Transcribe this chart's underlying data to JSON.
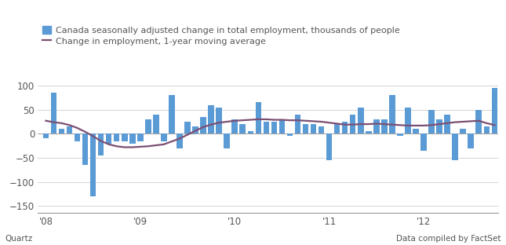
{
  "bar_values": [
    -10,
    85,
    10,
    15,
    -15,
    -65,
    -130,
    -45,
    -20,
    -15,
    -15,
    -20,
    -15,
    30,
    40,
    -15,
    80,
    -30,
    25,
    15,
    35,
    60,
    55,
    -30,
    30,
    20,
    5,
    65,
    25,
    25,
    30,
    -5,
    40,
    20,
    20,
    15,
    -55,
    20,
    25,
    40,
    55,
    5,
    30,
    30,
    80,
    -5,
    55,
    10,
    -35,
    50,
    30,
    40,
    -55,
    10,
    -30,
    50,
    15,
    95
  ],
  "moving_avg": [
    27,
    24,
    22,
    18,
    12,
    4,
    -5,
    -15,
    -22,
    -26,
    -28,
    -28,
    -27,
    -26,
    -24,
    -22,
    -16,
    -10,
    -2,
    6,
    14,
    19,
    23,
    25,
    27,
    28,
    29,
    30,
    30,
    29,
    29,
    28,
    28,
    27,
    26,
    25,
    23,
    21,
    19,
    19,
    20,
    20,
    21,
    20,
    19,
    18,
    17,
    17,
    17,
    18,
    20,
    22,
    24,
    25,
    26,
    27,
    22,
    18
  ],
  "n_bars": 58,
  "bar_color": "#5b9bd5",
  "line_color": "#7b4f72",
  "background_color": "#ffffff",
  "plot_bg_color": "#ffffff",
  "ylim": [
    -165,
    115
  ],
  "yticks": [
    -150,
    -100,
    -50,
    0,
    50,
    100
  ],
  "xtick_positions": [
    0,
    12,
    24,
    36,
    48
  ],
  "xtick_labels": [
    "'08",
    "'09",
    "'10",
    "'11",
    "'12"
  ],
  "legend_bar_label": "Canada seasonally adjusted change in total employment, thousands of people",
  "legend_line_label": "Change in employment, 1-year moving average",
  "source_left": "Quartz",
  "source_right": "Data compiled by FactSet",
  "gridcolor": "#cccccc",
  "axiscolor": "#999999",
  "text_color": "#555555",
  "legend_fontsize": 8.0,
  "tick_fontsize": 8.5,
  "source_fontsize": 7.5
}
